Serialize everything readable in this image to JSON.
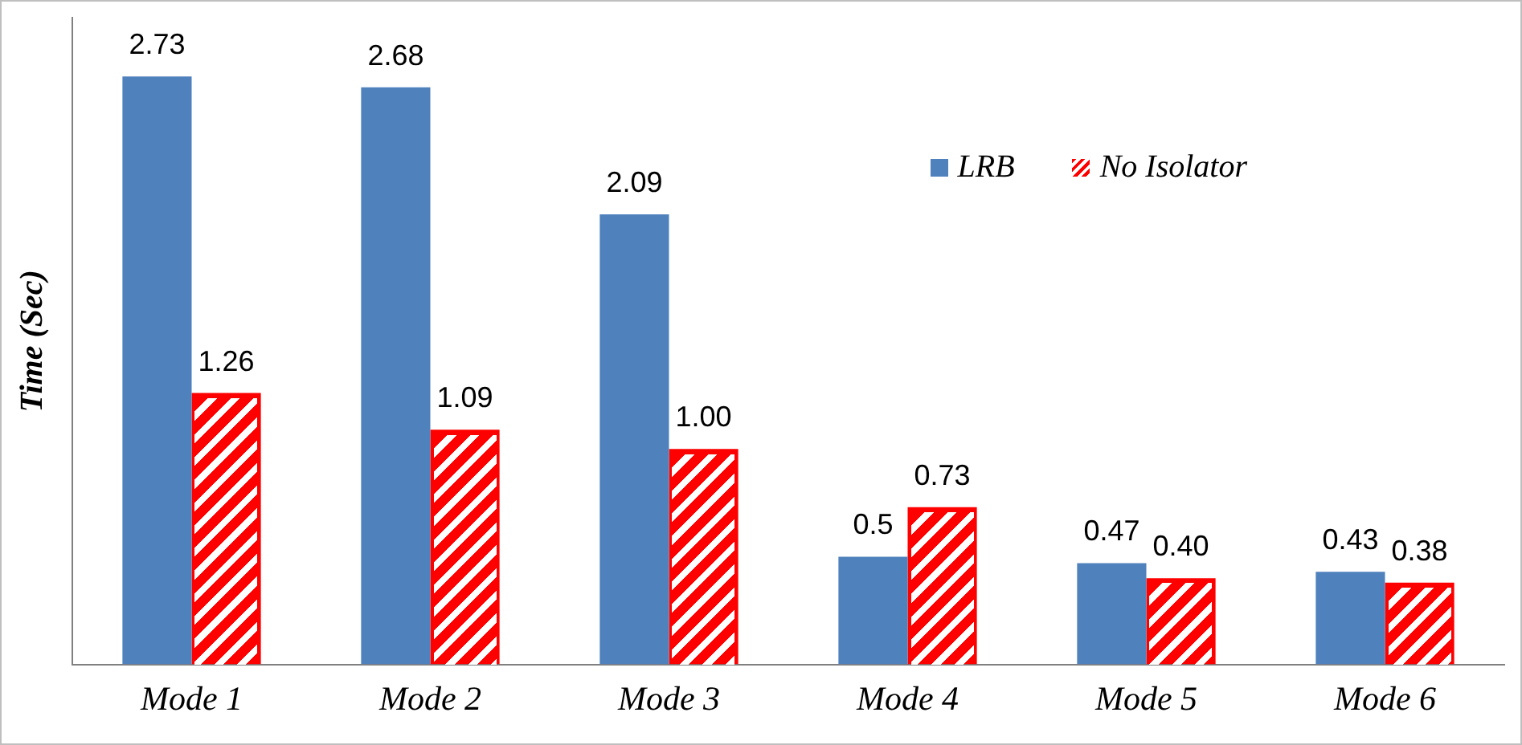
{
  "chart_data": {
    "type": "bar",
    "ylabel": "Time (Sec)",
    "categories": [
      "Mode 1",
      "Mode 2",
      "Mode 3",
      "Mode 4",
      "Mode 5",
      "Mode 6"
    ],
    "series": [
      {
        "name": "LRB",
        "color": "#4f81bd",
        "values": [
          2.73,
          2.68,
          2.09,
          0.5,
          0.47,
          0.43
        ],
        "value_labels": [
          "2.73",
          "2.68",
          "2.09",
          "0.5",
          "0.47",
          "0.43"
        ]
      },
      {
        "name": "No Isolator",
        "color": "#ff0000",
        "values": [
          1.26,
          1.09,
          1.0,
          0.73,
          0.4,
          0.38
        ],
        "value_labels": [
          "1.26",
          "1.09",
          "1.00",
          "0.73",
          "0.40",
          "0.38"
        ]
      }
    ],
    "legend": "top right",
    "grid": false
  }
}
